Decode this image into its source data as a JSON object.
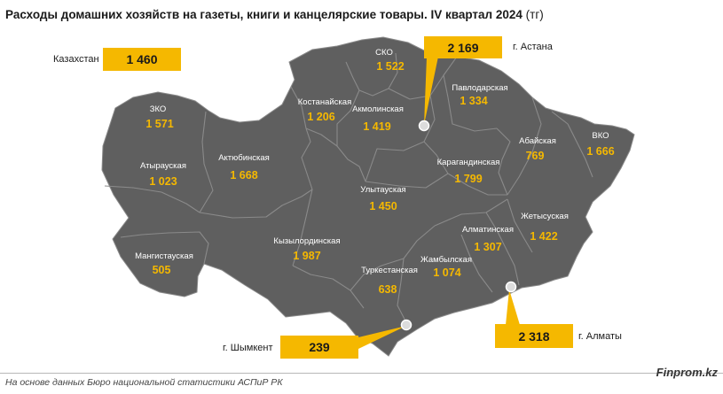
{
  "title": "Расходы домашних хозяйств на газеты, книги и канцелярские товары. IV квартал 2024",
  "unit": "(тг)",
  "kazakhstan": {
    "label": "Казахстан",
    "value": "1 460"
  },
  "cities": {
    "astana": {
      "label": "г. Астана",
      "value": "2 169"
    },
    "almaty": {
      "label": "г. Алматы",
      "value": "2 318"
    },
    "shymkent": {
      "label": "г. Шымкент",
      "value": "239"
    }
  },
  "regions": [
    {
      "name": "СКО",
      "value": "1 522"
    },
    {
      "name": "ЗКО",
      "value": "1 571"
    },
    {
      "name": "Костанайская",
      "value": "1 206"
    },
    {
      "name": "Акмолинская",
      "value": "1 419"
    },
    {
      "name": "Павлодарская",
      "value": "1 334"
    },
    {
      "name": "Абайская",
      "value": "769"
    },
    {
      "name": "ВКО",
      "value": "1 666"
    },
    {
      "name": "Атырауская",
      "value": "1 023"
    },
    {
      "name": "Актюбинская",
      "value": "1 668"
    },
    {
      "name": "Карагандинская",
      "value": "1 799"
    },
    {
      "name": "Улытауская",
      "value": "1 450"
    },
    {
      "name": "Жетысуская",
      "value": "1 422"
    },
    {
      "name": "Алматинская",
      "value": "1 307"
    },
    {
      "name": "Мангистауская",
      "value": "505"
    },
    {
      "name": "Кызылординская",
      "value": "1 987"
    },
    {
      "name": "Туркестанская",
      "value": "638"
    },
    {
      "name": "Жамбылская",
      "value": "1 074"
    }
  ],
  "colors": {
    "land": "#5f5f5f",
    "border": "#8a8a8a",
    "accent": "#f5b800"
  },
  "footer": {
    "source": "На основе данных Бюро национальной статистики АСПиР РК",
    "brand": "Finprom.kz"
  }
}
